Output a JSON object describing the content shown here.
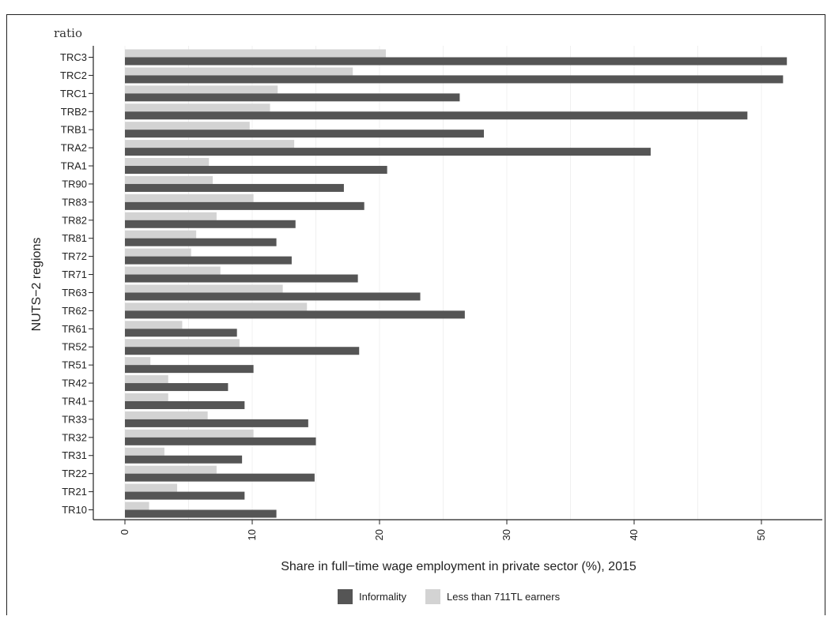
{
  "chart_data": {
    "type": "bar",
    "orientation": "horizontal",
    "annotation": "ratio",
    "xlabel": "Share in full−time wage employment in private sector (%), 2015",
    "ylabel": "NUTS−2 regions",
    "xlim": [
      -1,
      54
    ],
    "xticks": [
      0,
      10,
      20,
      30,
      40,
      50
    ],
    "grid": "vertical-light",
    "legend_position": "bottom",
    "categories": [
      "TRC3",
      "TRC2",
      "TRC1",
      "TRB2",
      "TRB1",
      "TRA2",
      "TRA1",
      "TR90",
      "TR83",
      "TR82",
      "TR81",
      "TR72",
      "TR71",
      "TR63",
      "TR62",
      "TR61",
      "TR52",
      "TR51",
      "TR42",
      "TR41",
      "TR33",
      "TR32",
      "TR31",
      "TR22",
      "TR21",
      "TR10"
    ],
    "series": [
      {
        "name": "Informality",
        "color": "#555555",
        "values": [
          52.0,
          51.7,
          26.3,
          48.9,
          28.2,
          41.3,
          20.6,
          17.2,
          18.8,
          13.4,
          11.9,
          13.1,
          18.3,
          23.2,
          26.7,
          8.8,
          18.4,
          10.1,
          8.1,
          9.4,
          14.4,
          15.0,
          9.2,
          14.9,
          9.4,
          11.9
        ]
      },
      {
        "name": "Less than 711TL earners",
        "color": "#d3d3d3",
        "values": [
          20.5,
          17.9,
          12.0,
          11.4,
          9.8,
          13.3,
          6.6,
          6.9,
          10.1,
          7.2,
          5.6,
          5.2,
          7.5,
          12.4,
          14.3,
          4.5,
          9.0,
          2.0,
          3.4,
          3.4,
          6.5,
          10.1,
          3.1,
          7.2,
          4.1,
          1.9
        ]
      }
    ]
  }
}
